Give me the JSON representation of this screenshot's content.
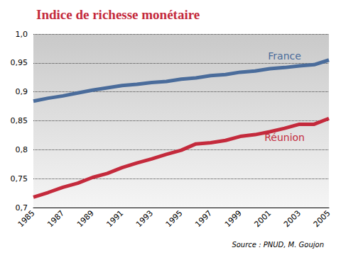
{
  "chart_data": {
    "type": "line",
    "title": "Indice de richesse monétaire",
    "source": "Source : PNUD, M. Goujon",
    "x": [
      1985,
      1986,
      1987,
      1988,
      1989,
      1990,
      1991,
      1992,
      1993,
      1994,
      1995,
      1996,
      1997,
      1998,
      1999,
      2000,
      2001,
      2002,
      2003,
      2004,
      2005
    ],
    "series": [
      {
        "name": "France",
        "color": "#4a6c9b",
        "values": [
          0.884,
          0.889,
          0.893,
          0.898,
          0.903,
          0.907,
          0.911,
          0.913,
          0.916,
          0.918,
          0.922,
          0.924,
          0.928,
          0.93,
          0.934,
          0.936,
          0.94,
          0.942,
          0.945,
          0.947,
          0.955
        ]
      },
      {
        "name": "Réunion",
        "color": "#c42a3c",
        "values": [
          0.718,
          0.726,
          0.735,
          0.742,
          0.752,
          0.759,
          0.769,
          0.777,
          0.784,
          0.792,
          0.799,
          0.81,
          0.812,
          0.816,
          0.823,
          0.826,
          0.831,
          0.837,
          0.844,
          0.844,
          0.854
        ]
      }
    ],
    "xlim": [
      1985,
      2005
    ],
    "xticks": [
      1985,
      1987,
      1989,
      1991,
      1993,
      1995,
      1997,
      1999,
      2001,
      2003,
      2005
    ],
    "ylim": [
      0.7,
      1.0
    ],
    "yticks": [
      {
        "value": 0.7,
        "label": "0,7"
      },
      {
        "value": 0.75,
        "label": "0,75"
      },
      {
        "value": 0.8,
        "label": "0,8"
      },
      {
        "value": 0.85,
        "label": "0,85"
      },
      {
        "value": 0.9,
        "label": "0,9"
      },
      {
        "value": 0.95,
        "label": "0,95"
      },
      {
        "value": 1.0,
        "label": "1,0"
      }
    ],
    "grid": true
  }
}
